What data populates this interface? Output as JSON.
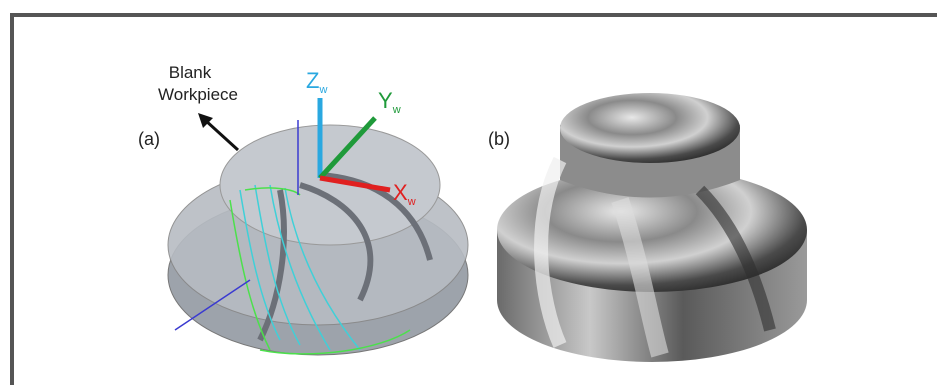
{
  "panels": [
    {
      "label": "(a)",
      "annotation": [
        "Blank",
        "Workpiece"
      ],
      "axes": [
        {
          "name": "Z",
          "subscript": "w"
        },
        {
          "name": "Y",
          "subscript": "w"
        },
        {
          "name": "X",
          "subscript": "w"
        }
      ]
    },
    {
      "label": "(b)"
    }
  ]
}
